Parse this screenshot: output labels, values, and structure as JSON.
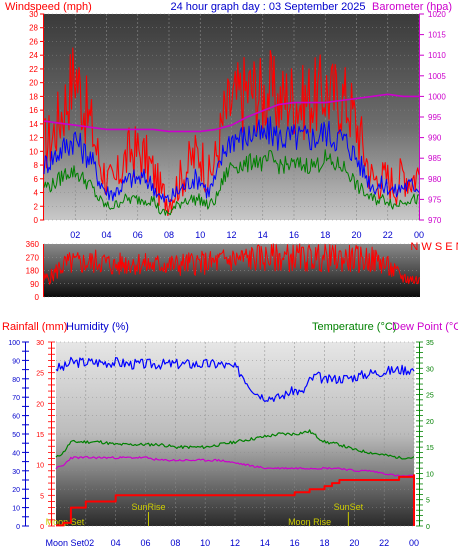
{
  "colors": {
    "wind": "#ff0000",
    "gust_blue": "#0000ff",
    "avg_green": "#008000",
    "barometer": "#cc00cc",
    "direction": "#ff0000",
    "rainfall": "#ff0000",
    "humidity": "#0000ff",
    "temperature": "#008000",
    "dewpoint": "#cc00cc",
    "sun_moon_label": "#cccc00",
    "sun_moon_line": "#c8c800"
  },
  "chart_data": [
    {
      "type": "line",
      "title": "24 hour graph day : 03 September 2025",
      "left_axis_label": "Windspeed (mph)",
      "right_axis_label": "Barometer (hpa)",
      "x_tick_labels": [
        "02",
        "04",
        "06",
        "08",
        "10",
        "12",
        "14",
        "16",
        "18",
        "20",
        "22",
        "00"
      ],
      "x_range_hours": [
        0,
        24
      ],
      "y_left_range": [
        0,
        30
      ],
      "y_left_ticks": [
        "0",
        "2",
        "4",
        "6",
        "8",
        "10",
        "12",
        "14",
        "16",
        "18",
        "20",
        "22",
        "24",
        "26",
        "28",
        "30"
      ],
      "y_right_range": [
        970,
        1020
      ],
      "y_right_ticks": [
        "970",
        "975",
        "980",
        "985",
        "990",
        "995",
        "1000",
        "1005",
        "1010",
        "1015",
        "1020"
      ],
      "series": [
        {
          "x": [
            0,
            0.5,
            1,
            1.5,
            2,
            2.5,
            3,
            3.5,
            4,
            4.5,
            5,
            5.5,
            6,
            6.5,
            7,
            7.5,
            8,
            8.5,
            9,
            9.5,
            10,
            10.5,
            11,
            11.5,
            12,
            12.5,
            13,
            13.5,
            14,
            14.5,
            15,
            15.5,
            16,
            16.5,
            17,
            17.5,
            18,
            18.5,
            19,
            19.5,
            20,
            20.5,
            21,
            21.5,
            22,
            22.5,
            23,
            23.5,
            24
          ],
          "values": [
            11,
            12,
            15,
            18,
            22,
            17,
            14,
            9,
            6,
            5,
            8,
            10,
            10,
            9,
            7,
            4,
            3,
            5,
            7,
            9,
            10,
            6,
            9,
            15,
            17,
            18,
            19,
            19,
            18,
            19,
            17,
            18,
            18,
            17,
            18,
            18,
            19,
            18,
            18,
            17,
            14,
            10,
            6,
            6,
            6,
            5,
            7,
            6,
            7
          ]
        },
        {
          "x": [
            0,
            0.5,
            1,
            1.5,
            2,
            2.5,
            3,
            3.5,
            4,
            4.5,
            5,
            5.5,
            6,
            6.5,
            7,
            7.5,
            8,
            8.5,
            9,
            9.5,
            10,
            10.5,
            11,
            11.5,
            12,
            12.5,
            13,
            13.5,
            14,
            14.5,
            15,
            15.5,
            16,
            16.5,
            17,
            17.5,
            18,
            18.5,
            19,
            19.5,
            20,
            20.5,
            21,
            21.5,
            22,
            22.5,
            23,
            23.5,
            24
          ],
          "values": [
            8,
            9,
            10,
            11,
            12,
            10,
            9,
            6,
            4,
            4,
            5,
            6,
            6,
            6,
            5,
            3,
            3,
            4,
            5,
            6,
            6,
            4,
            6,
            10,
            12,
            12,
            12,
            13,
            12,
            13,
            12,
            12,
            12,
            12,
            12,
            12,
            13,
            12,
            12,
            11,
            9,
            7,
            5,
            5,
            5,
            4,
            5,
            5,
            5
          ]
        },
        {
          "x": [
            0,
            0.5,
            1,
            1.5,
            2,
            2.5,
            3,
            3.5,
            4,
            4.5,
            5,
            5.5,
            6,
            6.5,
            7,
            7.5,
            8,
            8.5,
            9,
            9.5,
            10,
            10.5,
            11,
            11.5,
            12,
            12.5,
            13,
            13.5,
            14,
            14.5,
            15,
            15.5,
            16,
            16.5,
            17,
            17.5,
            18,
            18.5,
            19,
            19.5,
            20,
            20.5,
            21,
            21.5,
            22,
            22.5,
            23,
            23.5,
            24
          ],
          "values": [
            5,
            5,
            6,
            7,
            7,
            6,
            5,
            3,
            2,
            2,
            3,
            3,
            3,
            3,
            3,
            1,
            1,
            2,
            3,
            3,
            3,
            2,
            3,
            6,
            8,
            8,
            8,
            9,
            8,
            9,
            8,
            8,
            8,
            8,
            8,
            8,
            9,
            8,
            8,
            7,
            5,
            4,
            3,
            3,
            3,
            2,
            3,
            3,
            3
          ]
        },
        {
          "x": [
            0,
            1,
            2,
            3,
            4,
            5,
            6,
            7,
            8,
            9,
            10,
            11,
            12,
            13,
            14,
            15,
            16,
            17,
            18,
            19,
            20,
            21,
            22,
            23,
            24
          ],
          "values": [
            994,
            993.5,
            993,
            992.5,
            992,
            992,
            992,
            992,
            991.5,
            991.5,
            991.5,
            992,
            993,
            995,
            996.5,
            998,
            998.5,
            998.5,
            998.5,
            999,
            999.5,
            1000,
            1000.5,
            1000,
            1000
          ]
        }
      ]
    },
    {
      "type": "line",
      "right_axis_label": "N W S E N",
      "y_range": [
        0,
        360
      ],
      "y_ticks": [
        "0",
        "90",
        "180",
        "270",
        "360"
      ],
      "series": [
        {
          "x": [
            0,
            0.5,
            1,
            1.5,
            2,
            2.5,
            3,
            3.5,
            4,
            4.5,
            5,
            5.5,
            6,
            6.5,
            7,
            7.5,
            8,
            8.5,
            9,
            9.5,
            10,
            10.5,
            11,
            11.5,
            12,
            12.5,
            13,
            13.5,
            14,
            14.5,
            15,
            15.5,
            16,
            16.5,
            17,
            17.5,
            18,
            18.5,
            19,
            19.5,
            20,
            20.5,
            21,
            21.5,
            22,
            22.5,
            23,
            23.5,
            24
          ],
          "values": [
            120,
            140,
            200,
            225,
            230,
            230,
            235,
            245,
            230,
            210,
            225,
            235,
            230,
            220,
            210,
            225,
            220,
            215,
            225,
            230,
            230,
            230,
            235,
            250,
            255,
            258,
            262,
            265,
            265,
            265,
            268,
            268,
            270,
            265,
            268,
            266,
            265,
            262,
            262,
            260,
            258,
            255,
            250,
            240,
            200,
            160,
            130,
            120,
            110
          ]
        }
      ]
    },
    {
      "type": "line",
      "left_axis_labels": [
        "Rainfall (mm)",
        "Humidity (%)"
      ],
      "right_axis_labels": [
        "Temperature (°C)",
        "Dew Point (°C)"
      ],
      "x_tick_labels": [
        "Moon Set02",
        "04",
        "06",
        "08",
        "10",
        "12",
        "14",
        "16",
        "18",
        "20",
        "22",
        "00"
      ],
      "humidity_range": [
        0,
        100
      ],
      "humidity_ticks": [
        "0",
        "10",
        "20",
        "30",
        "40",
        "50",
        "60",
        "70",
        "80",
        "90",
        "100"
      ],
      "rain_range": [
        0,
        30
      ],
      "rain_ticks": [
        "0",
        "5",
        "10",
        "15",
        "20",
        "25",
        "30"
      ],
      "temp_range": [
        0,
        35
      ],
      "temp_ticks": [
        "0",
        "5",
        "10",
        "15",
        "20",
        "25",
        "30",
        "35"
      ],
      "annotations": [
        "Moon Set",
        "SunRise",
        "Moon Rise",
        "SunSet"
      ],
      "annotation_hours": [
        0.6,
        6.2,
        17.0,
        19.6
      ],
      "series": [
        {
          "x": [
            0,
            0.5,
            1,
            2,
            3,
            4,
            5,
            6,
            7,
            8,
            9,
            10,
            11,
            12,
            12.5,
            13,
            13.5,
            14,
            14.5,
            15,
            15.5,
            16,
            16.5,
            17,
            17.5,
            18,
            18.5,
            19,
            20,
            21,
            22,
            23,
            24
          ],
          "values": [
            86,
            86,
            89,
            89,
            89,
            89,
            88,
            88,
            88,
            88,
            88,
            88,
            88,
            86,
            82,
            76,
            72,
            70,
            70,
            70,
            72,
            74,
            72,
            79,
            82,
            79,
            80,
            80,
            81,
            83,
            84,
            85,
            85
          ]
        },
        {
          "x": [
            0,
            0.5,
            1,
            2,
            3,
            4,
            5,
            6,
            7,
            8,
            9,
            10,
            11,
            12,
            13,
            14,
            15,
            16,
            17,
            18,
            18.5,
            19,
            20,
            21,
            22,
            23,
            24
          ],
          "values": [
            0.1,
            0.5,
            3,
            4,
            4,
            5,
            5,
            5,
            5,
            5,
            5,
            5,
            5,
            5,
            5,
            5,
            5,
            5.5,
            6,
            6.5,
            7,
            7.5,
            7.5,
            7.5,
            7.5,
            8,
            8.3
          ]
        },
        {
          "x": [
            0,
            0.5,
            1,
            2,
            3,
            4,
            5,
            6,
            7,
            8,
            9,
            10,
            11,
            12,
            13,
            14,
            15,
            16,
            17,
            18,
            19,
            20,
            21,
            22,
            23,
            24
          ],
          "values": [
            13,
            14,
            16,
            16,
            16,
            15.5,
            15.5,
            15.5,
            15.5,
            15,
            15,
            15,
            15.5,
            16,
            16.5,
            17,
            17.5,
            17.5,
            18,
            16,
            15.5,
            14.5,
            14,
            13.5,
            13,
            13
          ]
        },
        {
          "x": [
            0,
            0.5,
            1,
            2,
            3,
            4,
            5,
            6,
            7,
            8,
            9,
            10,
            11,
            12,
            13,
            14,
            15,
            16,
            17,
            18,
            19,
            20,
            21,
            22,
            23,
            24
          ],
          "values": [
            11,
            11.5,
            13,
            13,
            13,
            13,
            13,
            13,
            12.5,
            12.5,
            12.5,
            12.5,
            12.5,
            12,
            11.5,
            11,
            11,
            11,
            11,
            11,
            11,
            10.5,
            10.5,
            10,
            9.5,
            9.5
          ]
        }
      ]
    }
  ]
}
